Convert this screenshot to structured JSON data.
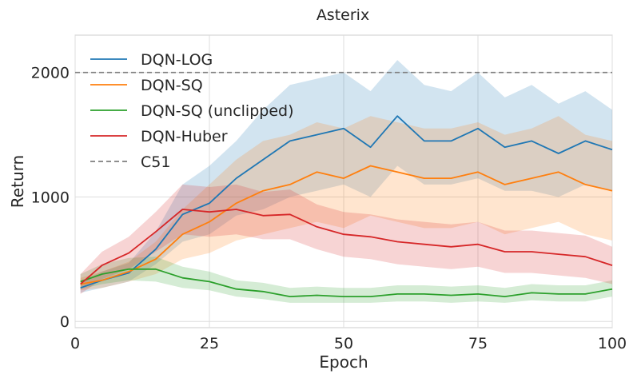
{
  "chart_data": {
    "type": "line",
    "title": "Asterix",
    "xlabel": "Epoch",
    "ylabel": "Return",
    "xlim": [
      0,
      100
    ],
    "ylim": [
      -50,
      2300
    ],
    "x_ticks": [
      0,
      25,
      50,
      75,
      100
    ],
    "y_ticks": [
      0,
      1000,
      2000
    ],
    "grid": true,
    "legend_position": "top-left",
    "reference_line": {
      "name": "C51",
      "value": 2000,
      "color": "#7f7f7f",
      "style": "dashed"
    },
    "series": [
      {
        "name": "DQN-LOG",
        "color": "#1f77b4",
        "x": [
          1,
          5,
          10,
          15,
          20,
          25,
          30,
          35,
          40,
          45,
          50,
          55,
          60,
          65,
          70,
          75,
          80,
          85,
          90,
          95,
          100
        ],
        "mean": [
          270,
          330,
          390,
          580,
          860,
          950,
          1150,
          1300,
          1450,
          1500,
          1550,
          1400,
          1650,
          1450,
          1450,
          1550,
          1400,
          1450,
          1350,
          1450,
          1380
        ],
        "low": [
          230,
          270,
          320,
          460,
          640,
          700,
          850,
          900,
          1000,
          1050,
          1100,
          1000,
          1250,
          1100,
          1100,
          1150,
          1050,
          1050,
          1000,
          1100,
          1050
        ],
        "high": [
          320,
          400,
          470,
          720,
          1100,
          1250,
          1450,
          1700,
          1900,
          1950,
          2000,
          1850,
          2100,
          1900,
          1850,
          2000,
          1800,
          1900,
          1750,
          1850,
          1700
        ]
      },
      {
        "name": "DQN-SQ",
        "color": "#ff7f0e",
        "x": [
          1,
          5,
          10,
          15,
          20,
          25,
          30,
          35,
          40,
          45,
          50,
          55,
          60,
          65,
          70,
          75,
          80,
          85,
          90,
          95,
          100
        ],
        "mean": [
          300,
          330,
          400,
          500,
          700,
          800,
          950,
          1050,
          1100,
          1200,
          1150,
          1250,
          1200,
          1150,
          1150,
          1200,
          1100,
          1150,
          1200,
          1100,
          1050
        ],
        "low": [
          250,
          270,
          320,
          380,
          500,
          550,
          650,
          700,
          750,
          800,
          750,
          850,
          800,
          750,
          750,
          800,
          700,
          750,
          800,
          700,
          650
        ],
        "high": [
          350,
          400,
          480,
          640,
          900,
          1100,
          1300,
          1450,
          1500,
          1600,
          1550,
          1650,
          1600,
          1550,
          1550,
          1600,
          1500,
          1550,
          1650,
          1500,
          1450
        ]
      },
      {
        "name": "DQN-SQ (unclipped)",
        "color": "#2ca02c",
        "x": [
          1,
          5,
          10,
          15,
          20,
          25,
          30,
          35,
          40,
          45,
          50,
          55,
          60,
          65,
          70,
          75,
          80,
          85,
          90,
          95,
          100
        ],
        "mean": [
          320,
          380,
          420,
          420,
          350,
          320,
          260,
          240,
          200,
          210,
          200,
          200,
          220,
          220,
          210,
          220,
          200,
          230,
          220,
          220,
          260
        ],
        "low": [
          260,
          300,
          330,
          320,
          270,
          250,
          200,
          180,
          150,
          150,
          150,
          150,
          160,
          160,
          150,
          160,
          150,
          170,
          160,
          160,
          200
        ],
        "high": [
          380,
          460,
          510,
          520,
          440,
          400,
          330,
          310,
          270,
          280,
          270,
          270,
          290,
          290,
          280,
          290,
          270,
          300,
          290,
          290,
          330
        ]
      },
      {
        "name": "DQN-Huber",
        "color": "#d62728",
        "x": [
          1,
          5,
          10,
          15,
          20,
          25,
          30,
          35,
          40,
          45,
          50,
          55,
          60,
          65,
          70,
          75,
          80,
          85,
          90,
          95,
          100
        ],
        "mean": [
          300,
          450,
          550,
          720,
          900,
          880,
          900,
          850,
          860,
          760,
          700,
          680,
          640,
          620,
          600,
          620,
          560,
          560,
          540,
          520,
          450
        ],
        "low": [
          220,
          340,
          420,
          560,
          700,
          680,
          700,
          660,
          660,
          580,
          520,
          500,
          460,
          440,
          420,
          440,
          390,
          390,
          370,
          350,
          300
        ],
        "high": [
          380,
          560,
          680,
          880,
          1100,
          1080,
          1100,
          1040,
          1060,
          940,
          880,
          860,
          820,
          800,
          780,
          800,
          730,
          730,
          710,
          690,
          600
        ]
      }
    ]
  }
}
